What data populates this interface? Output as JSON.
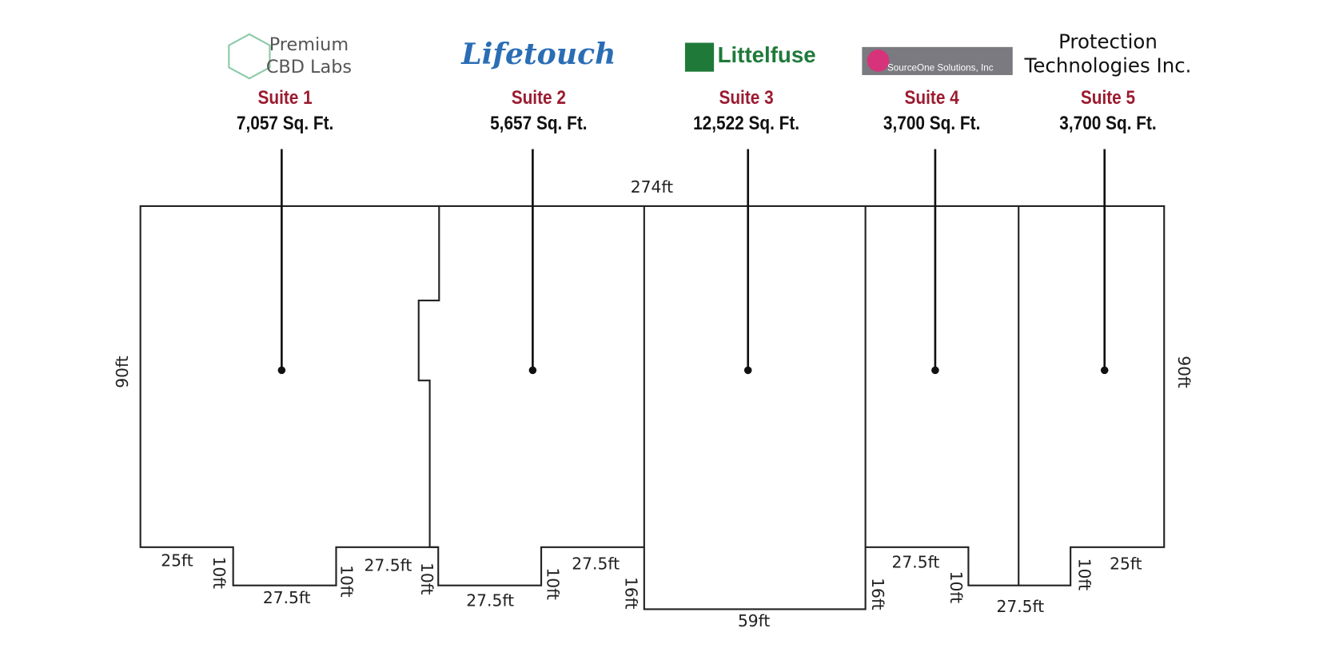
{
  "suites": [
    {
      "logo_lines": [
        "Premium",
        "CBD Labs"
      ],
      "name": "Suite 1",
      "area": "7,057 Sq. Ft."
    },
    {
      "logo_lines": [
        "Lifetouch"
      ],
      "name": "Suite 2",
      "area": "5,657 Sq. Ft."
    },
    {
      "logo_lines": [
        "Littelfuse"
      ],
      "name": "Suite 3",
      "area": "12,522 Sq. Ft."
    },
    {
      "logo_lines": [
        "SourceOne Solutions, Inc"
      ],
      "name": "Suite 4",
      "area": "3,700 Sq. Ft."
    },
    {
      "logo_lines": [
        "Protection",
        "Technologies Inc."
      ],
      "name": "Suite 5",
      "area": "3,700 Sq. Ft."
    }
  ],
  "dimensions": [
    "274ft",
    "90ft",
    "90ft",
    "25ft",
    "10ft",
    "27.5ft",
    "10ft",
    "27.5ft",
    "10ft",
    "27.5ft",
    "10ft",
    "27.5ft",
    "16ft",
    "59ft",
    "16ft",
    "27.5ft",
    "10ft",
    "27.5ft",
    "10ft",
    "25ft"
  ]
}
